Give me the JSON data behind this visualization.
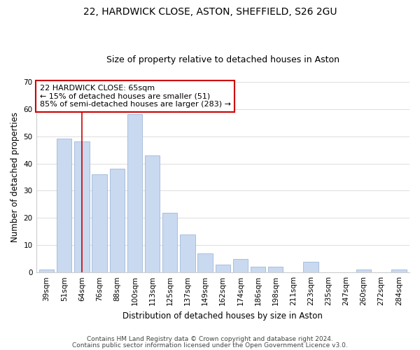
{
  "title": "22, HARDWICK CLOSE, ASTON, SHEFFIELD, S26 2GU",
  "subtitle": "Size of property relative to detached houses in Aston",
  "xlabel": "Distribution of detached houses by size in Aston",
  "ylabel": "Number of detached properties",
  "categories": [
    "39sqm",
    "51sqm",
    "64sqm",
    "76sqm",
    "88sqm",
    "100sqm",
    "113sqm",
    "125sqm",
    "137sqm",
    "149sqm",
    "162sqm",
    "174sqm",
    "186sqm",
    "198sqm",
    "211sqm",
    "223sqm",
    "235sqm",
    "247sqm",
    "260sqm",
    "272sqm",
    "284sqm"
  ],
  "values": [
    1,
    49,
    48,
    36,
    38,
    58,
    43,
    22,
    14,
    7,
    3,
    5,
    2,
    2,
    0,
    4,
    0,
    0,
    1,
    0,
    1
  ],
  "bar_color": "#c9d9f0",
  "bar_edge_color": "#a0b8d8",
  "vline_x_index": 2,
  "vline_color": "#cc0000",
  "annotation_line1": "22 HARDWICK CLOSE: 65sqm",
  "annotation_line2": "← 15% of detached houses are smaller (51)",
  "annotation_line3": "85% of semi-detached houses are larger (283) →",
  "annotation_box_color": "#ffffff",
  "annotation_box_edge_color": "#cc0000",
  "ylim": [
    0,
    70
  ],
  "yticks": [
    0,
    10,
    20,
    30,
    40,
    50,
    60,
    70
  ],
  "footer1": "Contains HM Land Registry data © Crown copyright and database right 2024.",
  "footer2": "Contains public sector information licensed under the Open Government Licence v3.0.",
  "background_color": "#ffffff",
  "grid_color": "#dddddd",
  "title_fontsize": 10,
  "subtitle_fontsize": 9,
  "axis_label_fontsize": 8.5,
  "tick_fontsize": 7.5,
  "annotation_fontsize": 8,
  "footer_fontsize": 6.5
}
